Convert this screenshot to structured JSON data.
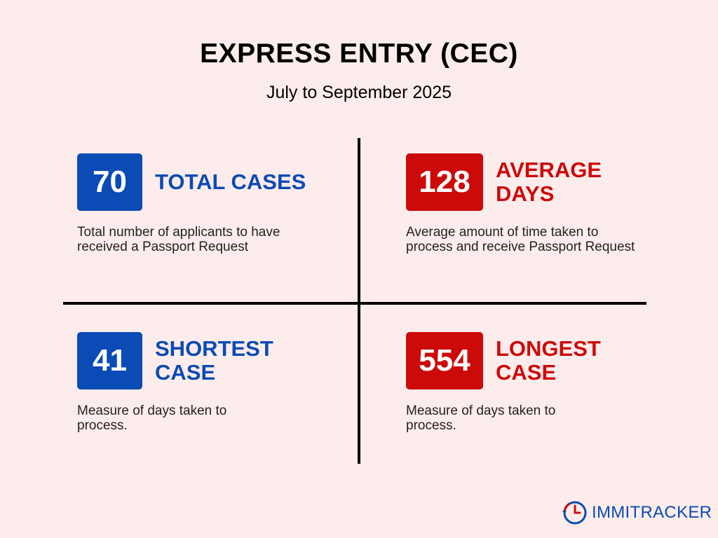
{
  "header": {
    "title": "EXPRESS ENTRY (CEC)",
    "subtitle": "July to September 2025"
  },
  "stats": [
    {
      "value": "70",
      "label": "TOTAL CASES",
      "description": "Total number of applicants to have received a Passport Request",
      "color": "#0a4bb5"
    },
    {
      "value": "128",
      "label": "AVERAGE DAYS",
      "description": "Average amount of time taken to process and receive Passport Request",
      "color": "#cc0a0a"
    },
    {
      "value": "41",
      "label": "SHORTEST CASE",
      "description": "Measure of days taken to process.",
      "color": "#0a4bb5"
    },
    {
      "value": "554",
      "label": "LONGEST CASE",
      "description": "Measure of days taken to process.",
      "color": "#cc0a0a"
    }
  ],
  "logo": {
    "text_part1": "IMMI",
    "text_part2": "TRACKER",
    "icon": "clock-icon",
    "color": "#0a4bb5"
  }
}
